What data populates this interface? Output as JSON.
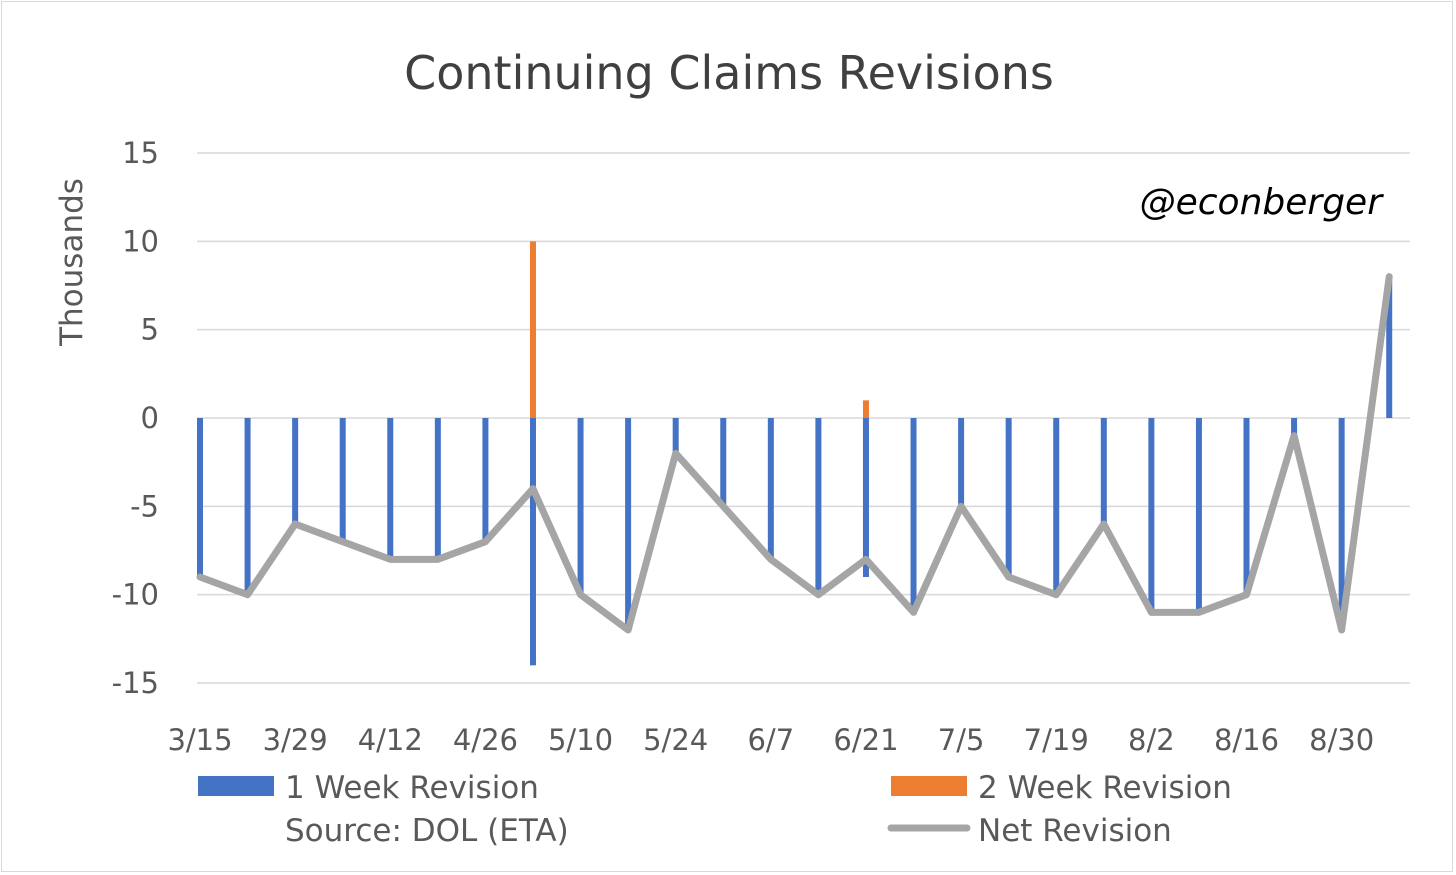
{
  "chart_data": {
    "type": "bar",
    "title": "Continuing Claims Revisions",
    "ylabel": "Thousands",
    "xlabel": "",
    "ylim": [
      -15,
      15
    ],
    "yticks": [
      15,
      10,
      5,
      0,
      -5,
      -10,
      -15
    ],
    "x_tick_labels": [
      "3/15",
      "3/29",
      "4/12",
      "4/26",
      "5/10",
      "5/24",
      "6/7",
      "6/21",
      "7/5",
      "7/19",
      "8/2",
      "8/16",
      "8/30"
    ],
    "categories": [
      "3/15",
      "3/22",
      "3/29",
      "4/5",
      "4/12",
      "4/19",
      "4/26",
      "5/3",
      "5/10",
      "5/17",
      "5/24",
      "5/31",
      "6/7",
      "6/14",
      "6/21",
      "6/28",
      "7/5",
      "7/12",
      "7/19",
      "7/26",
      "8/2",
      "8/9",
      "8/16",
      "8/23",
      "8/30",
      "9/6"
    ],
    "series": [
      {
        "name": "1 Week Revision",
        "kind": "bar",
        "color": "#4472c4",
        "values": [
          -9,
          -10,
          -6,
          -7,
          -8,
          -8,
          -7,
          -14,
          -10,
          -12,
          -2,
          -5,
          -8,
          -10,
          -9,
          -11,
          -5,
          -9,
          -10,
          -6,
          -11,
          -11,
          -10,
          -1,
          -12,
          8
        ]
      },
      {
        "name": "2 Week Revision",
        "kind": "bar",
        "color": "#ed7d31",
        "values": [
          0,
          0,
          0,
          0,
          0,
          0,
          0,
          10,
          0,
          0,
          0,
          0,
          0,
          0,
          1,
          0,
          0,
          0,
          0,
          0,
          0,
          0,
          0,
          0,
          0,
          0
        ]
      },
      {
        "name": "Net Revision",
        "kind": "line",
        "color": "#a5a5a5",
        "values": [
          -9,
          -10,
          -6,
          -7,
          -8,
          -8,
          -7,
          -4,
          -10,
          -12,
          -2,
          -5,
          -8,
          -10,
          -8,
          -11,
          -5,
          -9,
          -10,
          -6,
          -11,
          -11,
          -10,
          -1,
          -12,
          8
        ]
      }
    ],
    "grid": true,
    "legend": "bottom"
  },
  "source_note": "Source: DOL (ETA)",
  "watermark": "@econberger"
}
